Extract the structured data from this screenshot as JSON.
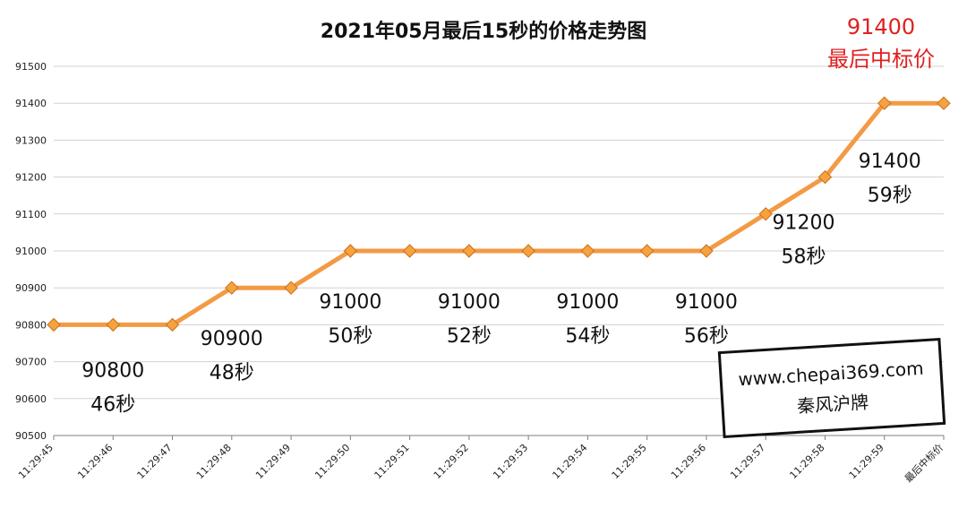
{
  "colors": {
    "line": "#f39a45",
    "marker_fill": "#f6a23e",
    "marker_stroke": "#c8701c",
    "grid": "#d0d0d0",
    "axis": "#7f7f7f",
    "highlight": "#e02020"
  },
  "chart_data": {
    "type": "line",
    "title": "2021年05月最后15秒的价格走势图",
    "xlabel": "",
    "ylabel": "",
    "ylim": [
      90500,
      91500
    ],
    "yticks": [
      "90500",
      "90600",
      "90700",
      "90800",
      "90900",
      "91000",
      "91100",
      "91200",
      "91300",
      "91400",
      "91500"
    ],
    "grid": true,
    "legend": "none",
    "categories": [
      "11:29:45",
      "11:29:46",
      "11:29:47",
      "11:29:48",
      "11:29:49",
      "11:29:50",
      "11:29:51",
      "11:29:52",
      "11:29:53",
      "11:29:54",
      "11:29:55",
      "11:29:56",
      "11:29:57",
      "11:29:58",
      "11:29:59",
      "最后中标价"
    ],
    "series": [
      {
        "values": [
          90800,
          90800,
          90800,
          90900,
          90900,
          91000,
          91000,
          91000,
          91000,
          91000,
          91000,
          91000,
          91100,
          91200,
          91400,
          91400
        ]
      }
    ],
    "annotations": [
      {
        "price": "90800",
        "time": "46秒",
        "category": "11:29:46"
      },
      {
        "price": "90900",
        "time": "48秒",
        "category": "11:29:48"
      },
      {
        "price": "91000",
        "time": "50秒",
        "category": "11:29:50"
      },
      {
        "price": "91000",
        "time": "52秒",
        "category": "11:29:52"
      },
      {
        "price": "91000",
        "time": "54秒",
        "category": "11:29:54"
      },
      {
        "price": "91000",
        "time": "56秒",
        "category": "11:29:56"
      },
      {
        "price": "91200",
        "time": "58秒",
        "category": "11:29:58"
      },
      {
        "price": "91400",
        "time": "59秒",
        "category": "11:29:59"
      }
    ],
    "final_label": {
      "price": "91400",
      "text": "最后中标价"
    }
  },
  "watermark": {
    "url": "www.chepai369.com",
    "brand": "秦风沪牌"
  }
}
